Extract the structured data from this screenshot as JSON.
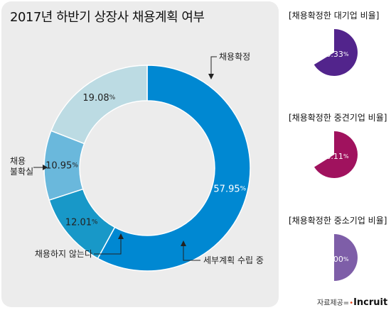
{
  "title": "2017년 하반기 상장사 채용계획 여부",
  "chart_data": [
    {
      "type": "pie",
      "title": "2017년 하반기 상장사 채용계획 여부",
      "categories": [
        "채용확정",
        "세부계획 수립 중",
        "채용하지 않는다",
        "채용 불확실"
      ],
      "values": [
        57.95,
        12.01,
        10.95,
        19.08
      ],
      "value_labels": [
        "57.95",
        "12.01",
        "10.95",
        "19.08"
      ],
      "unit": "%",
      "colors": [
        "#0088d2",
        "#1898c8",
        "#6ab8dc",
        "#bcdbe3"
      ],
      "label_colors": [
        "#ffffff",
        "#222222",
        "#222222",
        "#222222"
      ]
    },
    {
      "type": "pie",
      "title": "[채용확정한 대기업 비율]",
      "categories": [
        "채용확정"
      ],
      "values": [
        66.33
      ],
      "value_label": "66.33",
      "unit": "%",
      "color": "#52248c"
    },
    {
      "type": "pie",
      "title": "[채용확정한 중견기업 비율]",
      "categories": [
        "채용확정"
      ],
      "values": [
        66.11
      ],
      "value_label": "66.11",
      "unit": "%",
      "color": "#a0125e"
    },
    {
      "type": "pie",
      "title": "[채용확정한 중소기업 비율]",
      "categories": [
        "채용확정"
      ],
      "values": [
        50.0
      ],
      "value_label": "50.00",
      "unit": "%",
      "color": "#7e5ea8"
    }
  ],
  "callouts": {
    "c0": "채용확정",
    "c1": "세부계획 수립 중",
    "c2": "채용하지 않는다",
    "c3_line1": "채용",
    "c3_line2": "불확실"
  },
  "credit": {
    "prefix": "자료제공=",
    "logo": "Incruit"
  }
}
